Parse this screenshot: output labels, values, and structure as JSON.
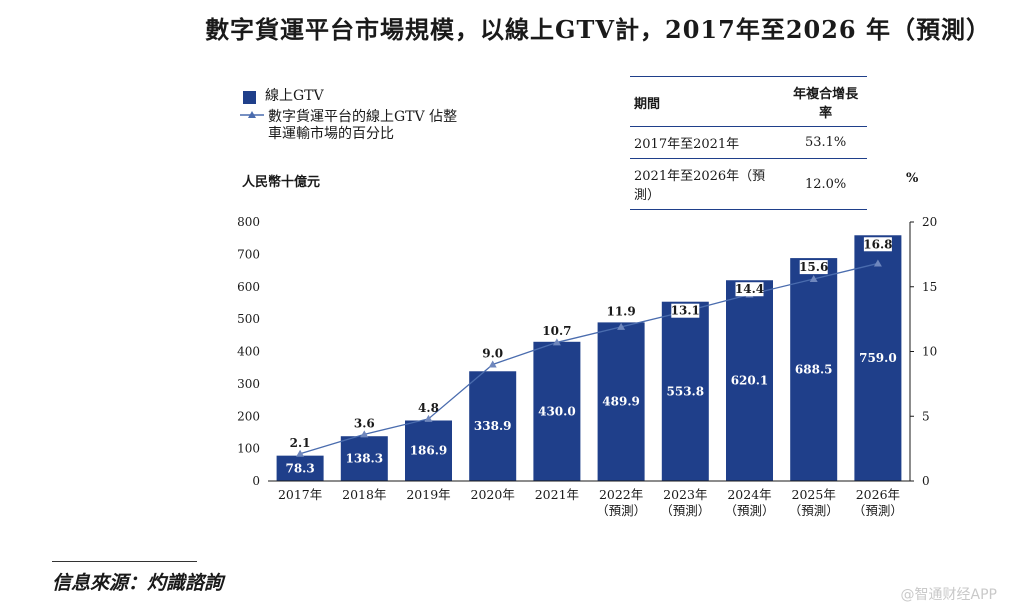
{
  "title": "數字貨運平台市場規模，以線上GTV計，2017年至2026 年（預測）",
  "legend": {
    "bar": "線上GTV",
    "line": "數字貨運平台的線上GTV 佔整車運輸市場的百分比"
  },
  "cagr_table": {
    "headers": [
      "期間",
      "年複合增長率"
    ],
    "rows": [
      [
        "2017年至2021年",
        "53.1%"
      ],
      [
        "2021年至2026年（預測）",
        "12.0%"
      ]
    ]
  },
  "left_unit": "人民幣十億元",
  "right_unit": "%",
  "source": "信息來源：灼識諮詢",
  "watermark": "@智通财经APP",
  "colors": {
    "bar": "#1f3f8a",
    "line": "#4a6cae",
    "marker": "#6f87bd"
  },
  "chart_data": {
    "type": "bar",
    "title": "數字貨運平台市場規模，以線上GTV計，2017年至2026 年（預測）",
    "categories": [
      "2017年",
      "2018年",
      "2019年",
      "2020年",
      "2021年",
      "2022年",
      "2023年",
      "2024年",
      "2025年",
      "2026年"
    ],
    "category_notes": [
      "",
      "",
      "",
      "",
      "",
      "（預測）",
      "（預測）",
      "（預測）",
      "（預測）",
      "（預測）"
    ],
    "series": [
      {
        "name": "線上GTV",
        "type": "bar",
        "axis": "left",
        "values": [
          78.3,
          138.3,
          186.9,
          338.9,
          430.0,
          489.9,
          553.8,
          620.1,
          688.5,
          759.0
        ],
        "labels": [
          "78.3",
          "138.3",
          "186.9",
          "338.9",
          "430.0",
          "489.9",
          "553.8",
          "620.1",
          "688.5",
          "759.0"
        ]
      },
      {
        "name": "數字貨運平台的線上GTV 佔整車運輸市場的百分比",
        "type": "line",
        "axis": "right",
        "values": [
          2.1,
          3.6,
          4.8,
          9.0,
          10.7,
          11.9,
          13.1,
          14.4,
          15.6,
          16.8
        ],
        "labels": [
          "2.1",
          "3.6",
          "4.8",
          "9.0",
          "10.7",
          "11.9",
          "13.1",
          "14.4",
          "15.6",
          "16.8"
        ]
      }
    ],
    "ylabel": "人民幣十億元",
    "ylim": [
      0,
      800
    ],
    "yticks": [
      "0",
      "100",
      "200",
      "300",
      "400",
      "500",
      "600",
      "700",
      "800"
    ],
    "y2label": "%",
    "y2lim": [
      0,
      20
    ],
    "y2ticks": [
      "0",
      "5",
      "10",
      "15",
      "20"
    ]
  }
}
